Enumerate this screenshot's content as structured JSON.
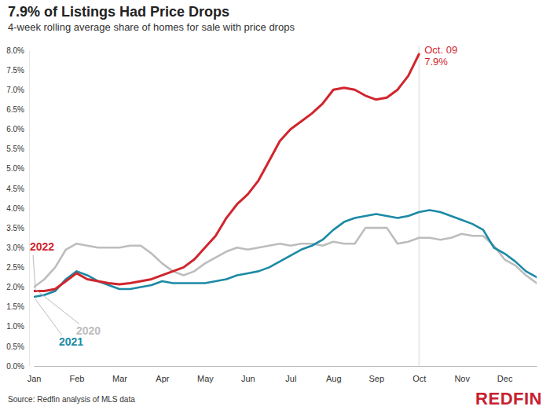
{
  "chart_data": {
    "type": "line",
    "title": "7.9% of Listings Had Price Drops",
    "subtitle": "4-week rolling average share of homes for sale with price drops",
    "source": "Source: Redfin analysis of MLS data",
    "logo": "REDFIN",
    "categories": [
      "Jan",
      null,
      null,
      null,
      "Feb",
      null,
      null,
      null,
      "Mar",
      null,
      null,
      null,
      "Apr",
      null,
      null,
      null,
      "May",
      null,
      null,
      null,
      "Jun",
      null,
      null,
      null,
      "Jul",
      null,
      null,
      null,
      "Aug",
      null,
      null,
      null,
      "Sep",
      null,
      null,
      null,
      "Oct",
      null,
      null,
      null,
      "Nov",
      null,
      null,
      null,
      "Dec",
      null,
      null,
      null
    ],
    "series": [
      {
        "name": "2020",
        "color": "#bdbdbd",
        "values": [
          2.0,
          2.2,
          2.5,
          2.95,
          3.1,
          3.05,
          3.0,
          3.0,
          3.0,
          3.05,
          3.05,
          2.85,
          2.6,
          2.4,
          2.3,
          2.4,
          2.6,
          2.75,
          2.9,
          3.0,
          2.95,
          3.0,
          3.05,
          3.1,
          3.05,
          3.1,
          3.1,
          3.05,
          3.15,
          3.1,
          3.1,
          3.5,
          3.5,
          3.5,
          3.1,
          3.15,
          3.25,
          3.25,
          3.2,
          3.25,
          3.35,
          3.3,
          3.3,
          3.05,
          2.7,
          2.55,
          2.3,
          2.1
        ]
      },
      {
        "name": "2021",
        "color": "#1b8aa5",
        "values": [
          1.75,
          1.8,
          1.9,
          2.2,
          2.4,
          2.3,
          2.15,
          2.05,
          1.95,
          1.95,
          2.0,
          2.05,
          2.15,
          2.1,
          2.1,
          2.1,
          2.1,
          2.15,
          2.2,
          2.3,
          2.35,
          2.4,
          2.5,
          2.65,
          2.8,
          2.95,
          3.05,
          3.2,
          3.45,
          3.65,
          3.75,
          3.8,
          3.85,
          3.8,
          3.75,
          3.8,
          3.9,
          3.95,
          3.9,
          3.8,
          3.7,
          3.6,
          3.45,
          3.0,
          2.85,
          2.65,
          2.4,
          2.25
        ]
      },
      {
        "name": "2022",
        "color": "#d0262e",
        "values": [
          1.9,
          1.9,
          1.95,
          2.15,
          2.35,
          2.2,
          2.15,
          2.1,
          2.07,
          2.1,
          2.15,
          2.2,
          2.3,
          2.4,
          2.5,
          2.7,
          3.0,
          3.3,
          3.75,
          4.1,
          4.35,
          4.7,
          5.2,
          5.7,
          6.0,
          6.2,
          6.4,
          6.65,
          7.0,
          7.05,
          7.0,
          6.85,
          6.75,
          6.8,
          7.0,
          7.35,
          7.9,
          null,
          null,
          null,
          null,
          null,
          null,
          null,
          null,
          null,
          null,
          null
        ],
        "value_labels": [
          null,
          null,
          null,
          null,
          null,
          null,
          null,
          null,
          null,
          null,
          null,
          null,
          null,
          null,
          null,
          null,
          null,
          null,
          null,
          null,
          null,
          null,
          null,
          null,
          null,
          null,
          null,
          null,
          null,
          null,
          null,
          null,
          null,
          null,
          null,
          null,
          "7.9%",
          null,
          null,
          null,
          null,
          null,
          null,
          null,
          null,
          null,
          null,
          null
        ]
      }
    ],
    "annotations": [
      {
        "text": "Oct. 09",
        "x": 36
      }
    ],
    "ylim": [
      0,
      8
    ],
    "yticks": [
      {
        "value": 0,
        "label": "0.0%"
      },
      {
        "value": 0.5,
        "label": "0.5%"
      },
      {
        "value": 1,
        "label": "1.0%"
      },
      {
        "value": 1.5,
        "label": "1.5%"
      },
      {
        "value": 2,
        "label": "2.0%"
      },
      {
        "value": 2.5,
        "label": "2.5%"
      },
      {
        "value": 3,
        "label": "3.0%"
      },
      {
        "value": 3.5,
        "label": "3.5%"
      },
      {
        "value": 4,
        "label": "4.0%"
      },
      {
        "value": 4.5,
        "label": "4.5%"
      },
      {
        "value": 5,
        "label": "5.0%"
      },
      {
        "value": 5.5,
        "label": "5.5%"
      },
      {
        "value": 6,
        "label": "6.0%"
      },
      {
        "value": 6.5,
        "label": "6.5%"
      },
      {
        "value": 7,
        "label": "7.0%"
      },
      {
        "value": 7.5,
        "label": "7.5%"
      },
      {
        "value": 8,
        "label": "8.0%"
      }
    ],
    "grid": false
  }
}
